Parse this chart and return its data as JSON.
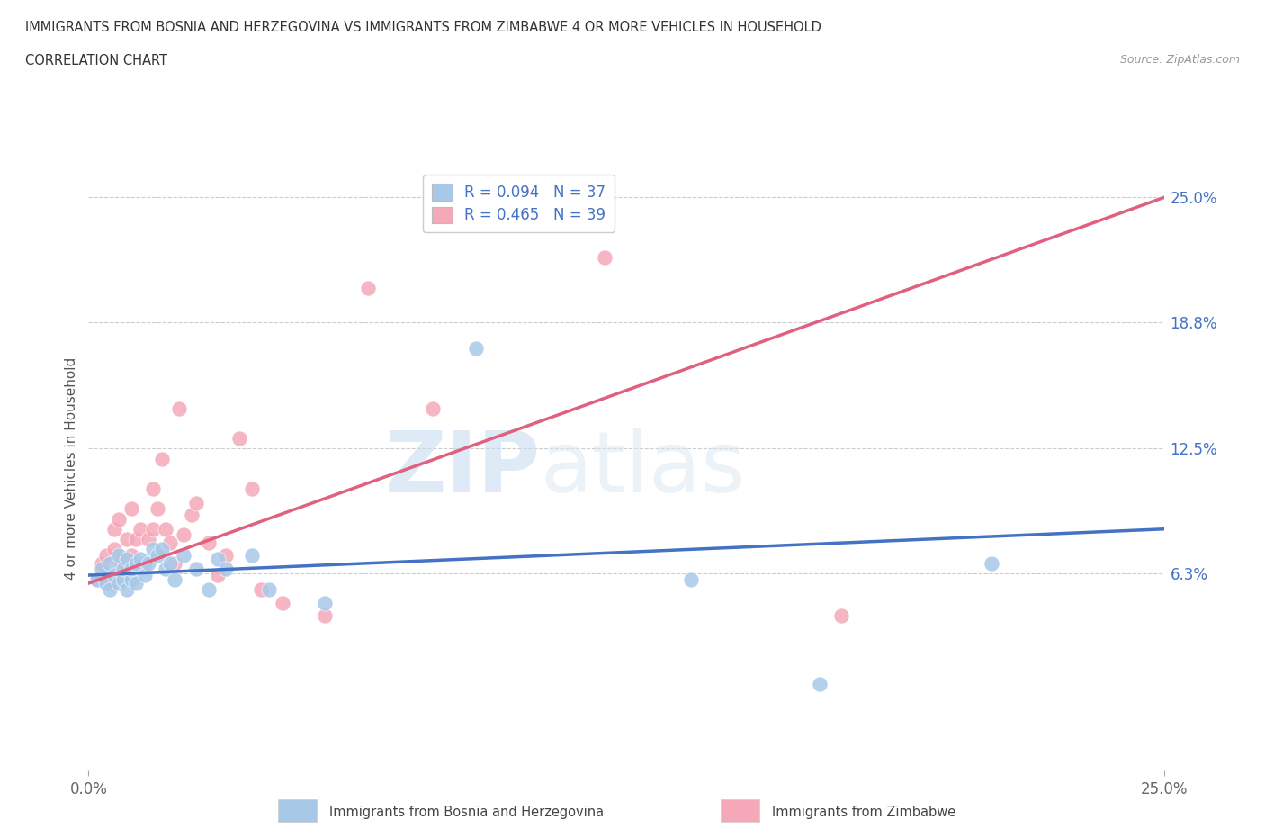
{
  "title_line1": "IMMIGRANTS FROM BOSNIA AND HERZEGOVINA VS IMMIGRANTS FROM ZIMBABWE 4 OR MORE VEHICLES IN HOUSEHOLD",
  "title_line2": "CORRELATION CHART",
  "source_text": "Source: ZipAtlas.com",
  "ylabel": "4 or more Vehicles in Household",
  "xlim": [
    0.0,
    0.25
  ],
  "ylim": [
    -0.035,
    0.265
  ],
  "ytick_labels": [
    "6.3%",
    "12.5%",
    "18.8%",
    "25.0%"
  ],
  "ytick_values": [
    0.063,
    0.125,
    0.188,
    0.25
  ],
  "xtick_labels": [
    "0.0%",
    "25.0%"
  ],
  "xtick_values": [
    0.0,
    0.25
  ],
  "legend_R1": "R = 0.094",
  "legend_N1": "N = 37",
  "legend_R2": "R = 0.465",
  "legend_N2": "N = 39",
  "color_bosnia": "#a8c8e8",
  "color_zimbabwe": "#f4a8b8",
  "line_color_bosnia": "#4472c4",
  "line_color_zimbabwe": "#e06080",
  "watermark_zip": "ZIP",
  "watermark_atlas": "atlas",
  "bosnia_x": [
    0.002,
    0.003,
    0.004,
    0.005,
    0.005,
    0.006,
    0.007,
    0.007,
    0.008,
    0.008,
    0.009,
    0.009,
    0.01,
    0.01,
    0.011,
    0.011,
    0.012,
    0.013,
    0.014,
    0.015,
    0.016,
    0.017,
    0.018,
    0.019,
    0.02,
    0.022,
    0.025,
    0.028,
    0.03,
    0.032,
    0.038,
    0.042,
    0.055,
    0.09,
    0.14,
    0.17,
    0.21
  ],
  "bosnia_y": [
    0.06,
    0.065,
    0.058,
    0.055,
    0.068,
    0.062,
    0.058,
    0.072,
    0.06,
    0.065,
    0.055,
    0.07,
    0.06,
    0.065,
    0.058,
    0.068,
    0.07,
    0.062,
    0.068,
    0.075,
    0.072,
    0.075,
    0.065,
    0.068,
    0.06,
    0.072,
    0.065,
    0.055,
    0.07,
    0.065,
    0.072,
    0.055,
    0.048,
    0.175,
    0.06,
    0.008,
    0.068
  ],
  "zimbabwe_x": [
    0.002,
    0.003,
    0.004,
    0.005,
    0.006,
    0.006,
    0.007,
    0.007,
    0.008,
    0.009,
    0.01,
    0.01,
    0.011,
    0.012,
    0.013,
    0.014,
    0.015,
    0.015,
    0.016,
    0.017,
    0.018,
    0.019,
    0.02,
    0.021,
    0.022,
    0.024,
    0.025,
    0.028,
    0.03,
    0.032,
    0.035,
    0.038,
    0.04,
    0.045,
    0.055,
    0.065,
    0.08,
    0.12,
    0.175
  ],
  "zimbabwe_y": [
    0.06,
    0.068,
    0.072,
    0.058,
    0.075,
    0.085,
    0.07,
    0.09,
    0.065,
    0.08,
    0.072,
    0.095,
    0.08,
    0.085,
    0.068,
    0.08,
    0.085,
    0.105,
    0.095,
    0.12,
    0.085,
    0.078,
    0.068,
    0.145,
    0.082,
    0.092,
    0.098,
    0.078,
    0.062,
    0.072,
    0.13,
    0.105,
    0.055,
    0.048,
    0.042,
    0.205,
    0.145,
    0.22,
    0.042
  ],
  "reg_line_bosnia": {
    "x0": 0.0,
    "x1": 0.25,
    "y0_approx": 0.062,
    "y1_approx": 0.085
  },
  "reg_line_zimbabwe": {
    "x0": 0.0,
    "x1": 0.25,
    "y0_approx": 0.058,
    "y1_approx": 0.25
  }
}
